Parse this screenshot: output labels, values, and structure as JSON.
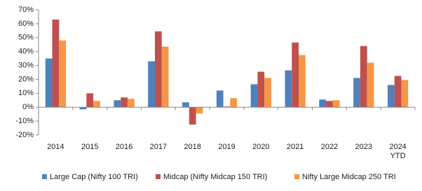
{
  "chart_data": {
    "type": "bar",
    "categories": [
      "2014",
      "2015",
      "2016",
      "2017",
      "2018",
      "2019",
      "2020",
      "2021",
      "2022",
      "2023",
      "2024 YTD"
    ],
    "series": [
      {
        "name": "Large Cap (Nifty 100 TRI)",
        "color": "#4f81bd",
        "values": [
          35,
          -1.5,
          5,
          33,
          3.5,
          12,
          16.5,
          26.5,
          5.5,
          21,
          16
        ]
      },
      {
        "name": "Midcap (Nifty Midcap 150 TRI)",
        "color": "#c0504d",
        "values": [
          63,
          10,
          7,
          54.5,
          -12.5,
          0.5,
          25.5,
          46.5,
          4.5,
          44,
          22.5
        ]
      },
      {
        "name": "Nifty Large Midcap 250 TRI",
        "color": "#f79646",
        "values": [
          48,
          4.5,
          6,
          43.5,
          -4.5,
          6.5,
          21,
          37.5,
          5,
          32,
          19.5
        ]
      }
    ],
    "ylim": [
      -20,
      70
    ],
    "yticks": [
      {
        "value": -20,
        "label": "-20%"
      },
      {
        "value": -10,
        "label": "-10%"
      },
      {
        "value": 0,
        "label": "0%"
      },
      {
        "value": 10,
        "label": "10%"
      },
      {
        "value": 20,
        "label": "20%"
      },
      {
        "value": 30,
        "label": "30%"
      },
      {
        "value": 40,
        "label": "40%"
      },
      {
        "value": 50,
        "label": "50%"
      },
      {
        "value": 60,
        "label": "60%"
      },
      {
        "value": 70,
        "label": "70%"
      }
    ],
    "legend": "bottom"
  }
}
